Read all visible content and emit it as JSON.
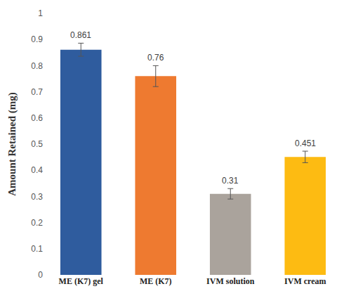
{
  "chart_data": {
    "type": "bar",
    "y_label": "Amount Retained (mg)",
    "categories": [
      "ME (K7) gel",
      "ME (K7)",
      "IVM solution",
      "IVM cream"
    ],
    "values": [
      0.861,
      0.76,
      0.31,
      0.451
    ],
    "error": [
      0.025,
      0.04,
      0.02,
      0.022
    ],
    "colors": [
      "#2f5c9e",
      "#ee7a30",
      "#aaa39c",
      "#fdbb12"
    ],
    "ylim": [
      0,
      1
    ],
    "yticks": [
      0,
      0.1,
      0.2,
      0.3,
      0.4,
      0.5,
      0.6,
      0.7,
      0.8,
      0.9,
      1
    ],
    "grid": false,
    "data_labels": true
  }
}
